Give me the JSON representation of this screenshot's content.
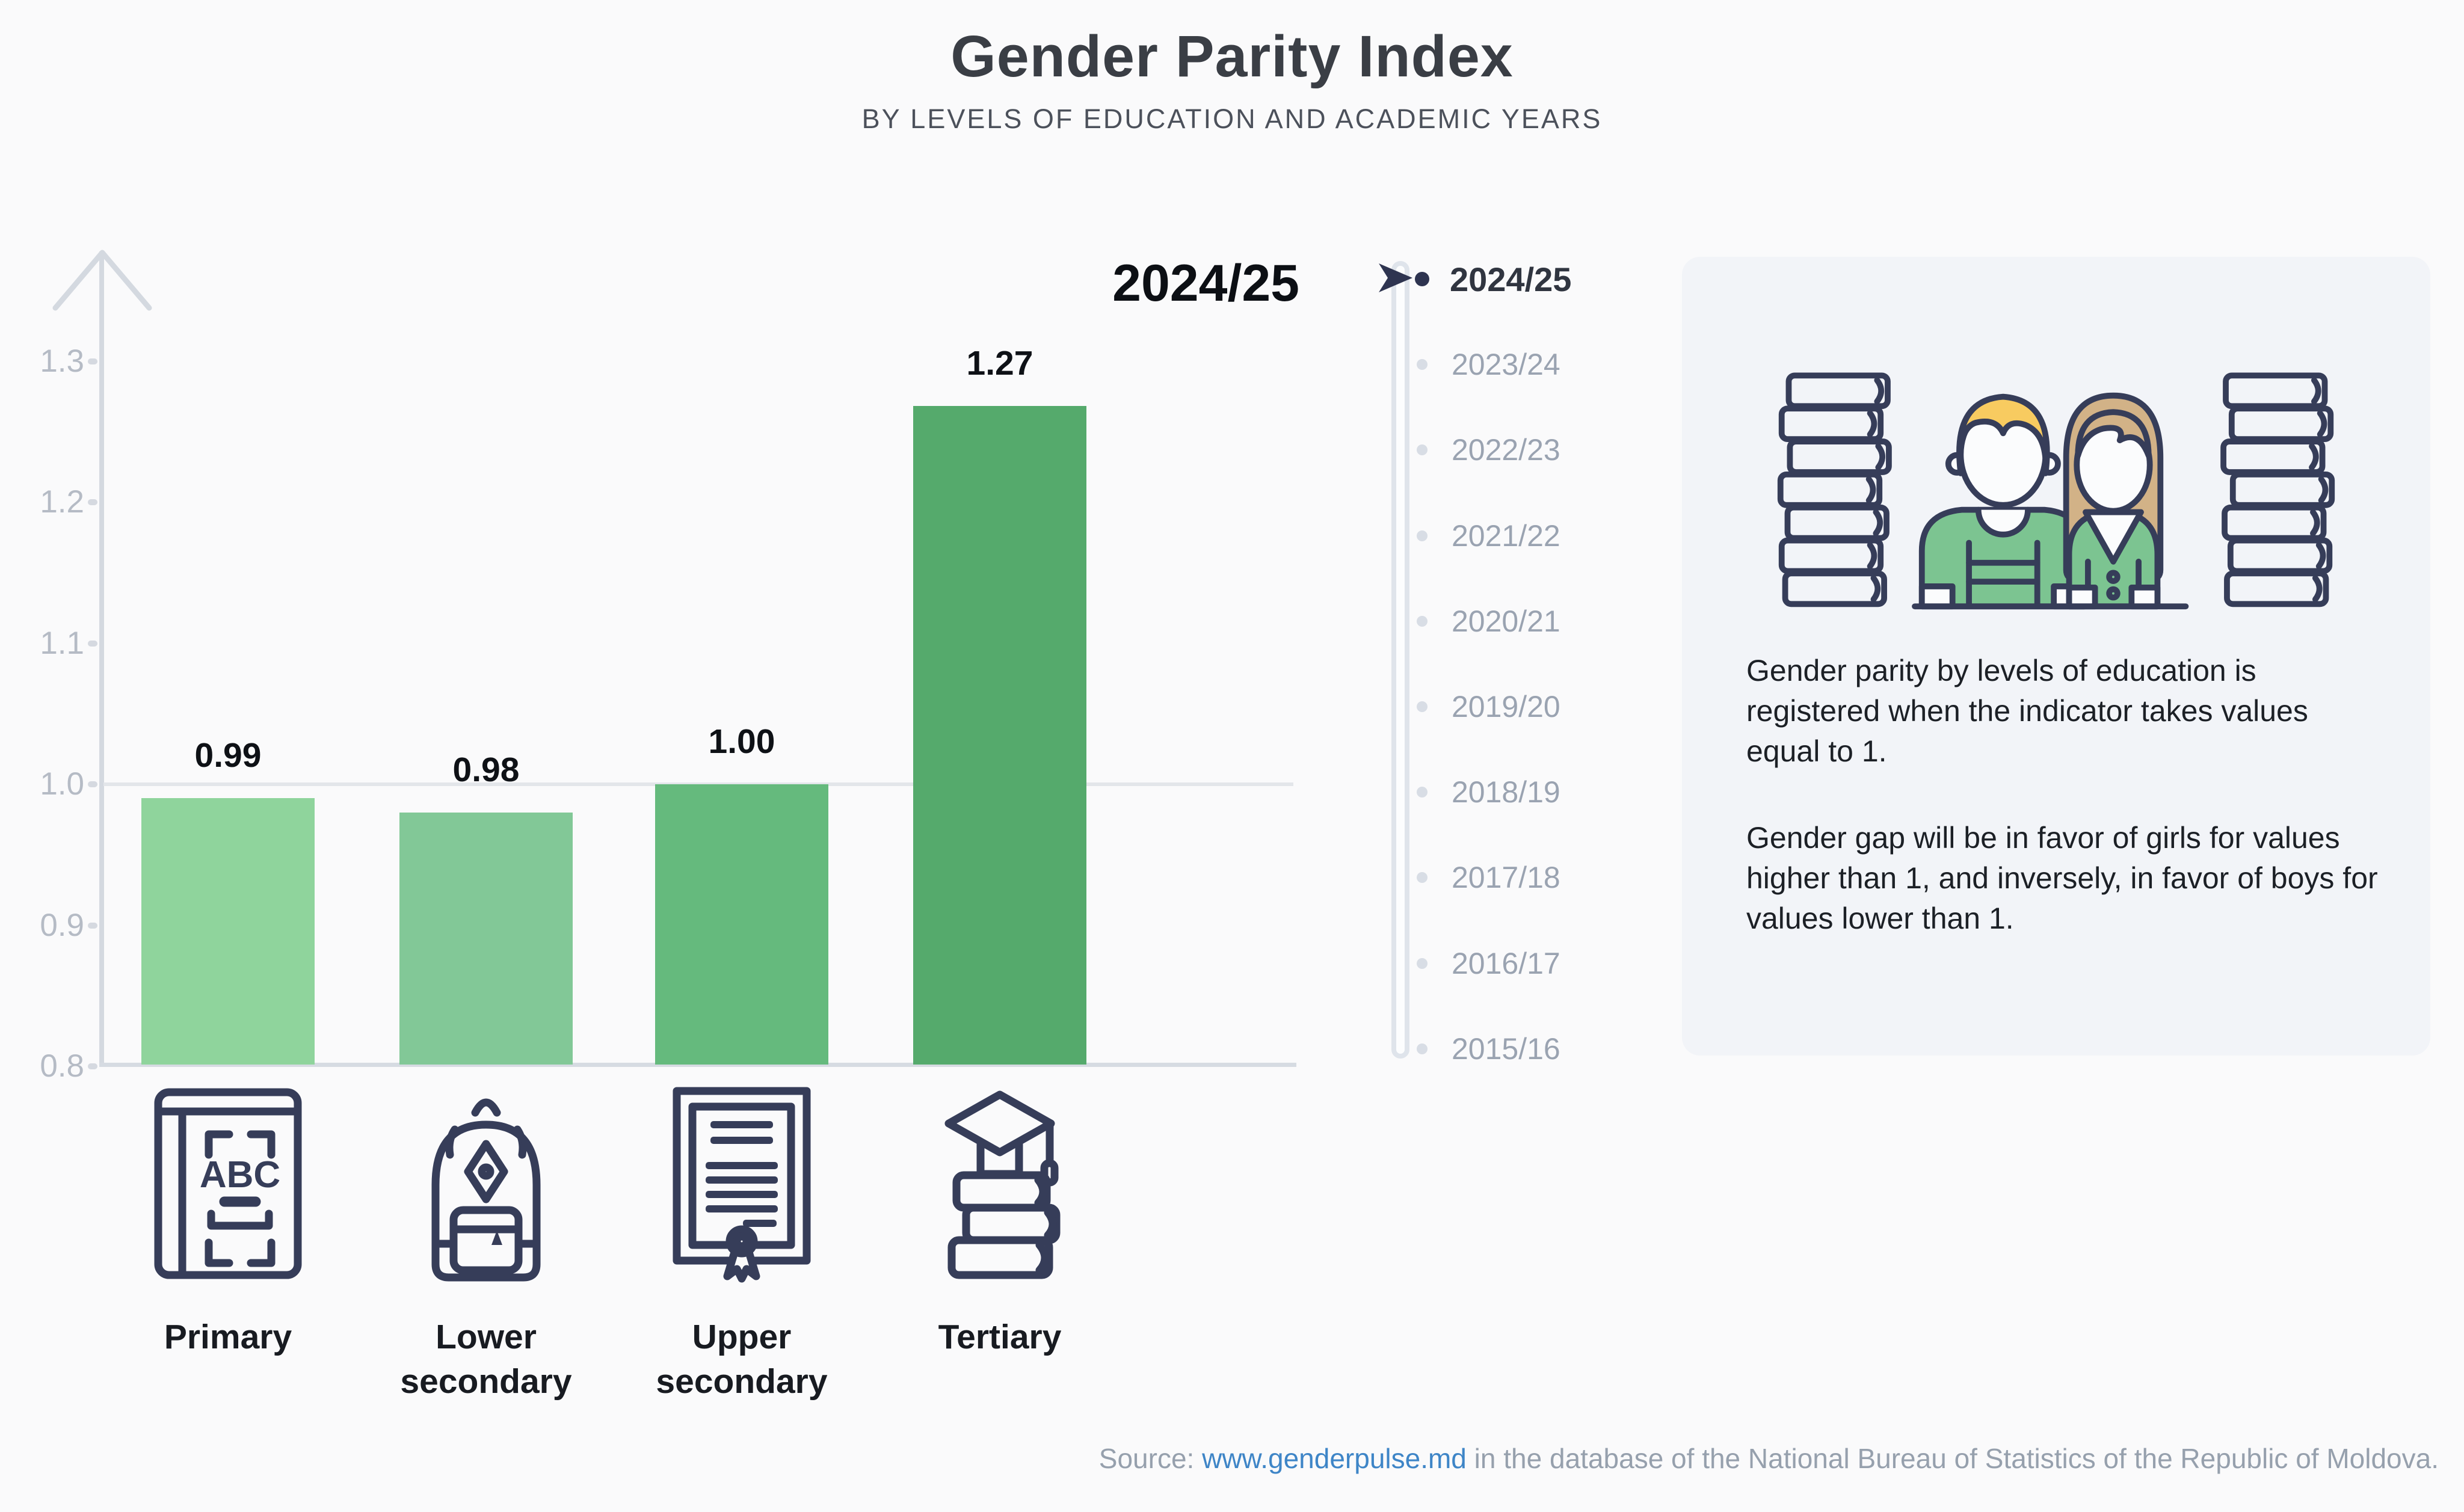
{
  "header": {
    "title": "Gender Parity Index",
    "subtitle": "BY LEVELS OF EDUCATION AND ACADEMIC YEARS"
  },
  "chart_data": {
    "type": "bar",
    "title": "Gender Parity Index",
    "subtitle": "BY LEVELS OF EDUCATION AND ACADEMIC YEARS",
    "period": "2024/25",
    "categories": [
      "Primary",
      "Lower secondary",
      "Upper secondary",
      "Tertiary"
    ],
    "values": [
      0.99,
      0.98,
      1.0,
      1.27
    ],
    "value_labels": [
      "0.99",
      "0.98",
      "1.00",
      "1.27"
    ],
    "bar_colors": [
      "#8fd49c",
      "#82c897",
      "#65ba7d",
      "#55aa6c"
    ],
    "xlabel": "",
    "ylabel": "",
    "ylim": [
      0.8,
      1.345
    ],
    "yticks": [
      1.3,
      1.2,
      1.1,
      1.0,
      0.9,
      0.8
    ],
    "ytick_labels": [
      "1.3",
      "1.2",
      "1.1",
      "1.0",
      "0.9",
      "0.8"
    ],
    "reference_line": 1.0,
    "grid": "reference-line-only",
    "legend_position": "none",
    "category_icons": [
      "abc-book",
      "backpack",
      "diploma",
      "books-graduation-cap"
    ]
  },
  "timeline": {
    "selected": "2024/25",
    "years": [
      "2024/25",
      "2023/24",
      "2022/23",
      "2021/22",
      "2020/21",
      "2019/20",
      "2018/19",
      "2017/18",
      "2016/17",
      "2015/16"
    ]
  },
  "info_panel": {
    "illustration": "boy-girl-with-book-stacks",
    "paragraph1": "Gender parity by levels of education is registered when the indicator takes values equal to 1.",
    "paragraph2": "Gender gap will be in favor of girls for values higher than 1, and inversely, in favor of boys for values lower than 1."
  },
  "icons": {
    "abc_label": "ABC"
  },
  "source": {
    "prefix": "Source: ",
    "link_text": "www.genderpulse.md",
    "suffix": " in the database of the National Bureau of Statistics of the Republic of Moldova."
  },
  "colors": {
    "background": "#fafafb",
    "panel_bg": "#f2f4f8",
    "axis_gray": "#d4d9e0",
    "tick_text": "#b5bbc5",
    "navy_outline": "#363d59",
    "timeline_selected": "#2e3450",
    "timeline_muted": "#9aa3b1",
    "link_blue": "#3e85c7",
    "source_gray": "#96a0ad",
    "boy_hair": "#f8cb60",
    "girl_hair": "#d2b287",
    "shirt_green": "#7cc491"
  }
}
